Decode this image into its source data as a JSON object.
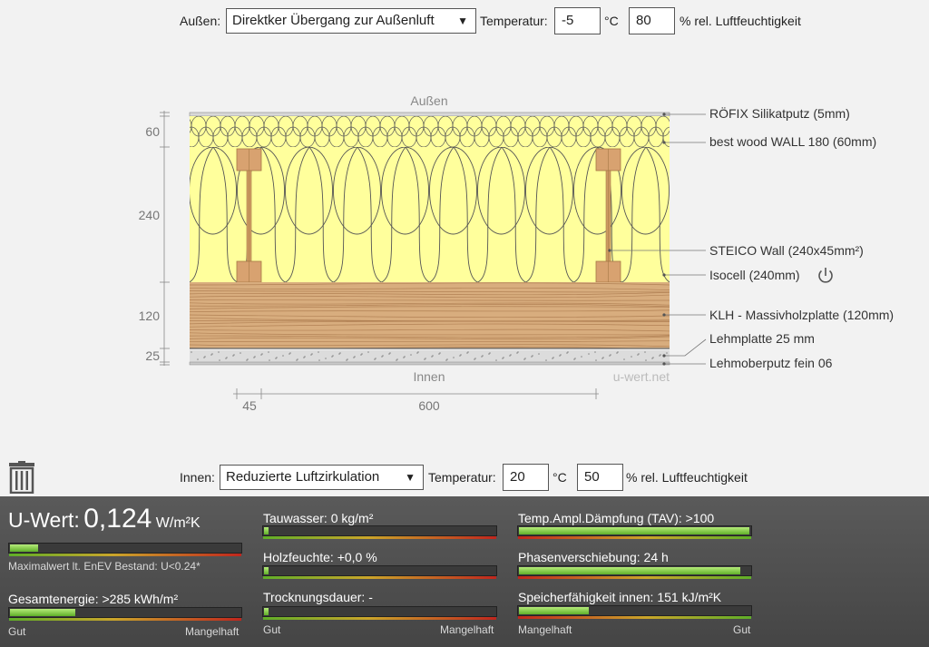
{
  "outside": {
    "label": "Außen:",
    "select_value": "Direktker Übergang zur Außenluft",
    "temp_label": "Temperatur:",
    "temp_value": "-5",
    "temp_unit": "°C",
    "humidity_value": "80",
    "humidity_unit": "% rel. Luftfeuchtigkeit"
  },
  "inside": {
    "label": "Innen:",
    "select_value": "Reduzierte Luftzirkulation",
    "temp_label": "Temperatur:",
    "temp_value": "20",
    "temp_unit": "°C",
    "humidity_value": "50",
    "humidity_unit": "% rel. Luftfeuchtigkeit"
  },
  "diagram": {
    "top_label": "Außen",
    "bottom_label": "Innen",
    "watermark": "u-wert.net",
    "dims_left": [
      "60",
      "240",
      "120",
      "25"
    ],
    "dims_bottom": [
      "45",
      "600"
    ],
    "layers": [
      "RÖFIX Silikatputz (5mm)",
      "best wood WALL 180 (60mm)",
      "STEICO  Wall (240x45mm²)",
      "Isocell (240mm)",
      "KLH - Massivholzplatte (120mm)",
      "Lehmplatte 25 mm",
      "Lehmoberputz fein 06"
    ],
    "colors": {
      "insulation": "#ffff9c",
      "wood": "#d8ad7e",
      "stud": "#d8a270",
      "clay": "#dcdcdc"
    }
  },
  "results": {
    "uwert_label": "U-Wert:",
    "uwert_value": "0,124",
    "uwert_unit": "W/m²K",
    "uwert_level": 0.12,
    "enev_note": "Maximalwert lt. EnEV Bestand: U<0.24*",
    "gesamtenergie": "Gesamtenergie: >285 kWh/m²",
    "gesamtenergie_level": 0.28,
    "tauwasser": "Tauwasser: 0 kg/m²",
    "tauwasser_level": 0.0,
    "holzfeuchte": "Holzfeuchte: +0,0 %",
    "holzfeuchte_level": 0.01,
    "trocknung": "Trocknungsdauer: -",
    "trocknung_level": 0.01,
    "tav": "Temp.Ampl.Dämpfung (TAV): >100",
    "tav_level": 0.99,
    "phase": "Phasenverschiebung: 24 h",
    "phase_level": 0.95,
    "speicher": "Speicherfähigkeit innen: 151 kJ/m²K",
    "speicher_level": 0.3,
    "scale_good": "Gut",
    "scale_bad": "Mangelhaft"
  }
}
